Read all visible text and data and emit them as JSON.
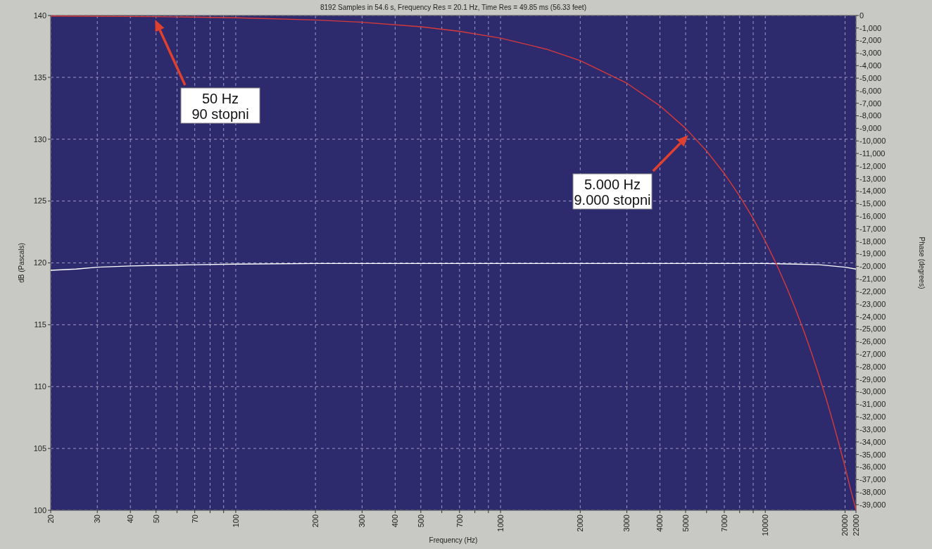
{
  "chart_data": {
    "type": "line",
    "title": "8192 Samples in 54.6 s, Frequency Res = 20.1 Hz, Time Res = 49.85 ms (56.33 feet)",
    "xlabel": "Frequency (Hz)",
    "ylabel": "dB (Pascals)",
    "y2label": "Phase (degrees)",
    "log": "x",
    "grid": true,
    "marker": "none",
    "line_style": "solid",
    "xlim": [
      20,
      22000
    ],
    "xticks": [
      20,
      30,
      40,
      50,
      {
        "value": 60,
        "label": null
      },
      70,
      {
        "value": 80,
        "label": null
      },
      {
        "value": 90,
        "label": null
      },
      100,
      200,
      300,
      400,
      500,
      {
        "value": 600,
        "label": null
      },
      700,
      {
        "value": 800,
        "label": null
      },
      {
        "value": 900,
        "label": null
      },
      1000,
      2000,
      3000,
      4000,
      5000,
      {
        "value": 6000,
        "label": null
      },
      7000,
      {
        "value": 8000,
        "label": null
      },
      {
        "value": 9000,
        "label": null
      },
      10000,
      20000,
      22000
    ],
    "ylim": [
      100,
      140
    ],
    "yticks": [
      100,
      105,
      110,
      115,
      120,
      125,
      130,
      135,
      140
    ],
    "y2lim": [
      -39450,
      0
    ],
    "y2ticks": [
      0,
      {
        "value": -1000,
        "label": "-1,000"
      },
      {
        "value": -2000,
        "label": "-2,000"
      },
      {
        "value": -3000,
        "label": "-3,000"
      },
      {
        "value": -4000,
        "label": "-4,000"
      },
      {
        "value": -5000,
        "label": "-5,000"
      },
      {
        "value": -6000,
        "label": "-6,000"
      },
      {
        "value": -7000,
        "label": "-7,000"
      },
      {
        "value": -8000,
        "label": "-8,000"
      },
      {
        "value": -9000,
        "label": "-9,000"
      },
      {
        "value": -10000,
        "label": "-10,000"
      },
      {
        "value": -11000,
        "label": "-11,000"
      },
      {
        "value": -12000,
        "label": "-12,000"
      },
      {
        "value": -13000,
        "label": "-13,000"
      },
      {
        "value": -14000,
        "label": "-14,000"
      },
      {
        "value": -15000,
        "label": "-15,000"
      },
      {
        "value": -16000,
        "label": "-16,000"
      },
      {
        "value": -17000,
        "label": "-17,000"
      },
      {
        "value": -18000,
        "label": "-18,000"
      },
      {
        "value": -19000,
        "label": "-19,000"
      },
      {
        "value": -20000,
        "label": "-20,000"
      },
      {
        "value": -21000,
        "label": "-21,000"
      },
      {
        "value": -22000,
        "label": "-22,000"
      },
      {
        "value": -23000,
        "label": "-23,000"
      },
      {
        "value": -24000,
        "label": "-24,000"
      },
      {
        "value": -25000,
        "label": "-25,000"
      },
      {
        "value": -26000,
        "label": "-26,000"
      },
      {
        "value": -27000,
        "label": "-27,000"
      },
      {
        "value": -28000,
        "label": "-28,000"
      },
      {
        "value": -29000,
        "label": "-29,000"
      },
      {
        "value": -30000,
        "label": "-30,000"
      },
      {
        "value": -31000,
        "label": "-31,000"
      },
      {
        "value": -32000,
        "label": "-32,000"
      },
      {
        "value": -33000,
        "label": "-33,000"
      },
      {
        "value": -34000,
        "label": "-34,000"
      },
      {
        "value": -35000,
        "label": "-35,000"
      },
      {
        "value": -36000,
        "label": "-36,000"
      },
      {
        "value": -37000,
        "label": "-37,000"
      },
      {
        "value": -38000,
        "label": "-38,000"
      },
      {
        "value": -39000,
        "label": "-39,000"
      }
    ],
    "series": [
      {
        "color": "#ffffff",
        "x": [
          20,
          25,
          30,
          40,
          50,
          70,
          100,
          200,
          1000,
          5000,
          10000,
          13000,
          16000,
          20000,
          22000
        ],
        "values": [
          119.4,
          119.5,
          119.65,
          119.75,
          119.8,
          119.85,
          119.9,
          119.95,
          119.95,
          119.95,
          119.95,
          119.9,
          119.85,
          119.65,
          119.5
        ]
      },
      {
        "color": "#d83a3a",
        "axis": "y2",
        "x": [
          20,
          50,
          100,
          200,
          300,
          500,
          700,
          1000,
          1500,
          2000,
          3000,
          4000,
          5000,
          6000,
          7000,
          8000,
          9000,
          10000,
          11000,
          12000,
          13000,
          14000,
          15000,
          16000,
          17000,
          18000,
          19000,
          20000,
          21000,
          22000
        ],
        "values": [
          -40,
          -90,
          -180,
          -360,
          -540,
          -900,
          -1260,
          -1800,
          -2700,
          -3600,
          -5400,
          -7200,
          -9000,
          -10800,
          -12600,
          -14400,
          -16200,
          -18000,
          -19800,
          -21600,
          -23400,
          -25200,
          -27000,
          -28800,
          -30600,
          -32400,
          -34200,
          -36000,
          -37800,
          -39400
        ]
      }
    ],
    "annotations": [
      "50 Hz\n90 stopni",
      "5.000 Hz\n9.000 stopni"
    ]
  }
}
